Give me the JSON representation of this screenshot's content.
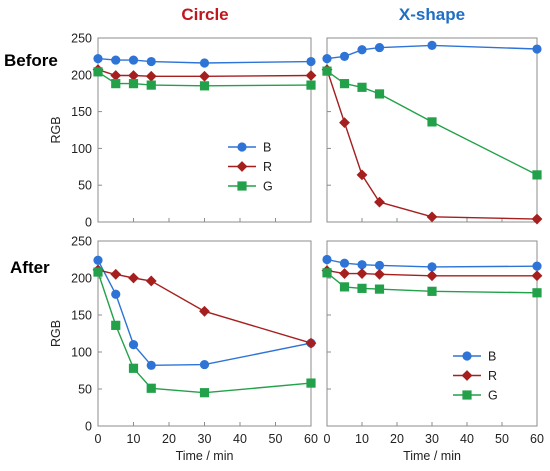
{
  "figure": {
    "col_titles": [
      {
        "text": "Circle",
        "color": "#c0161f"
      },
      {
        "text": "X-shape",
        "color": "#1f6fc5"
      }
    ],
    "row_titles": [
      "Before",
      "After"
    ]
  },
  "chart_data": [
    {
      "id": "before-circle",
      "type": "line",
      "row_title": "Before",
      "col_title": "Circle",
      "xlabel": "",
      "ylabel": "RGB",
      "xlim": [
        0,
        60
      ],
      "ylim": [
        0,
        250
      ],
      "xticks": [
        0,
        10,
        20,
        30,
        40,
        50,
        60
      ],
      "yticks": [
        0,
        50,
        100,
        150,
        200,
        250
      ],
      "grid": false,
      "legend": {
        "entries": [
          "B",
          "R",
          "G"
        ],
        "placement": "lower-right"
      },
      "x": [
        0,
        5,
        10,
        15,
        30,
        60
      ],
      "series": [
        {
          "name": "B",
          "color": "#2e74d6",
          "marker": "circle",
          "values": [
            222,
            220,
            220,
            218,
            216,
            218
          ]
        },
        {
          "name": "R",
          "color": "#a61f1f",
          "marker": "diamond",
          "values": [
            207,
            199,
            199,
            198,
            198,
            199
          ]
        },
        {
          "name": "G",
          "color": "#23a14a",
          "marker": "square",
          "values": [
            204,
            188,
            188,
            186,
            185,
            186
          ]
        }
      ]
    },
    {
      "id": "before-xshape",
      "type": "line",
      "row_title": "Before",
      "col_title": "X-shape",
      "xlabel": "",
      "ylabel": "",
      "xlim": [
        0,
        60
      ],
      "ylim": [
        0,
        250
      ],
      "xticks": [
        0,
        10,
        20,
        30,
        40,
        50,
        60
      ],
      "yticks": [
        0,
        50,
        100,
        150,
        200,
        250
      ],
      "grid": false,
      "x": [
        0,
        5,
        10,
        15,
        30,
        60
      ],
      "series": [
        {
          "name": "B",
          "color": "#2e74d6",
          "marker": "circle",
          "values": [
            222,
            225,
            234,
            237,
            240,
            235
          ]
        },
        {
          "name": "R",
          "color": "#a61f1f",
          "marker": "diamond",
          "values": [
            207,
            135,
            64,
            27,
            7,
            4
          ]
        },
        {
          "name": "G",
          "color": "#23a14a",
          "marker": "square",
          "values": [
            205,
            188,
            183,
            174,
            136,
            64
          ]
        }
      ]
    },
    {
      "id": "after-circle",
      "type": "line",
      "row_title": "After",
      "col_title": "Circle",
      "xlabel": "Time / min",
      "ylabel": "RGB",
      "xlim": [
        0,
        60
      ],
      "ylim": [
        0,
        250
      ],
      "xticks": [
        0,
        10,
        20,
        30,
        40,
        50,
        60
      ],
      "yticks": [
        0,
        50,
        100,
        150,
        200,
        250
      ],
      "grid": false,
      "x": [
        0,
        5,
        10,
        15,
        30,
        60
      ],
      "series": [
        {
          "name": "B",
          "color": "#2e74d6",
          "marker": "circle",
          "values": [
            224,
            178,
            110,
            82,
            83,
            112
          ]
        },
        {
          "name": "R",
          "color": "#a61f1f",
          "marker": "diamond",
          "values": [
            211,
            205,
            200,
            196,
            155,
            112
          ]
        },
        {
          "name": "G",
          "color": "#23a14a",
          "marker": "square",
          "values": [
            208,
            136,
            78,
            51,
            45,
            58
          ]
        }
      ]
    },
    {
      "id": "after-xshape",
      "type": "line",
      "row_title": "After",
      "col_title": "X-shape",
      "xlabel": "Time / min",
      "ylabel": "",
      "xlim": [
        0,
        60
      ],
      "ylim": [
        0,
        250
      ],
      "xticks": [
        0,
        10,
        20,
        30,
        40,
        50,
        60
      ],
      "yticks": [
        0,
        50,
        100,
        150,
        200,
        250
      ],
      "grid": false,
      "legend": {
        "entries": [
          "B",
          "R",
          "G"
        ],
        "placement": "lower-right"
      },
      "x": [
        0,
        5,
        10,
        15,
        30,
        60
      ],
      "series": [
        {
          "name": "B",
          "color": "#2e74d6",
          "marker": "circle",
          "values": [
            225,
            220,
            218,
            217,
            215,
            216
          ]
        },
        {
          "name": "R",
          "color": "#a61f1f",
          "marker": "diamond",
          "values": [
            210,
            206,
            206,
            205,
            203,
            203
          ]
        },
        {
          "name": "G",
          "color": "#23a14a",
          "marker": "square",
          "values": [
            207,
            188,
            186,
            185,
            182,
            180
          ]
        }
      ]
    }
  ]
}
